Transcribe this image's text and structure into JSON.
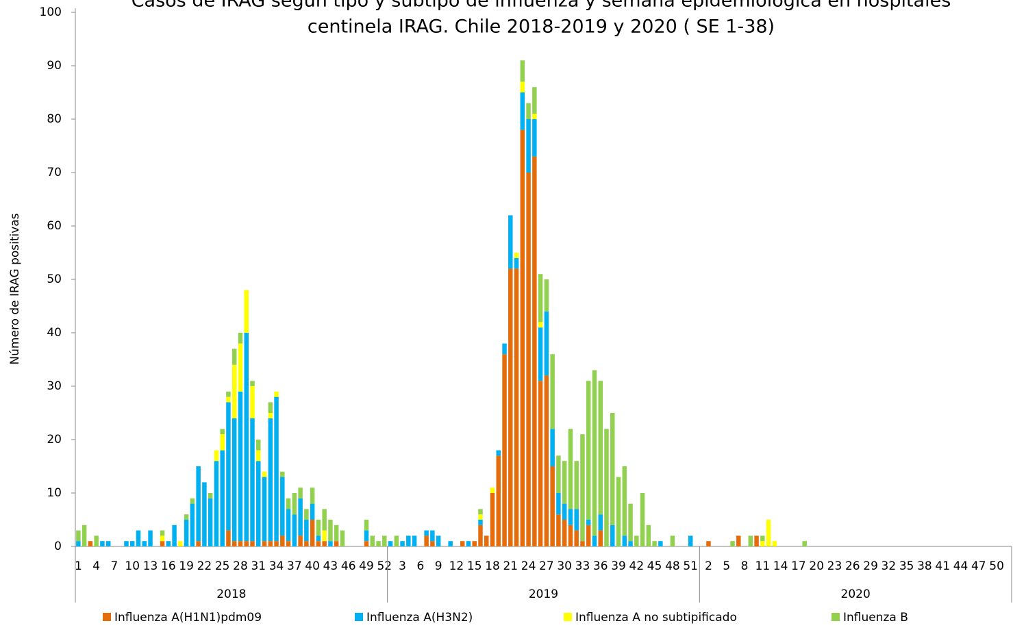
{
  "chart_data": {
    "type": "stacked_bar",
    "title": [
      "Casos de IRAG según tipo y subtipo de influenza y semana epidemiológica en hospitales",
      "centinela IRAG.  Chile 2018-2019 y 2020 ( SE 1-38)"
    ],
    "y_label": "Número de IRAG positivas",
    "groups": [
      "2018",
      "2019",
      "2020"
    ],
    "categories": [
      "1",
      null,
      null,
      "4",
      null,
      null,
      "7",
      null,
      null,
      "10",
      null,
      null,
      "13",
      null,
      null,
      "16",
      null,
      null,
      "19",
      null,
      null,
      "22",
      null,
      null,
      "25",
      null,
      null,
      "28",
      null,
      null,
      "31",
      null,
      null,
      "34",
      null,
      null,
      "37",
      null,
      null,
      "40",
      null,
      null,
      "43",
      null,
      null,
      "46",
      null,
      null,
      "49",
      null,
      null,
      "52",
      null,
      null,
      "3",
      null,
      null,
      "6",
      null,
      null,
      "9",
      null,
      null,
      "12",
      null,
      null,
      "15",
      null,
      null,
      "18",
      null,
      null,
      "21",
      null,
      null,
      "24",
      null,
      null,
      "27",
      null,
      null,
      "30",
      null,
      null,
      "33",
      null,
      null,
      "36",
      null,
      null,
      "39",
      null,
      null,
      "42",
      null,
      null,
      "45",
      null,
      null,
      "48",
      null,
      null,
      "51",
      null,
      null,
      "2",
      null,
      null,
      "5",
      null,
      null,
      "8",
      null,
      null,
      "11",
      null,
      null,
      "14",
      null,
      null,
      "17",
      null,
      null,
      "20",
      null,
      null,
      "23",
      null,
      null,
      "26",
      null,
      null,
      "29",
      null,
      null,
      "32",
      null,
      null,
      "35",
      null,
      null,
      "38",
      null,
      null,
      "41",
      null,
      null,
      "44",
      null,
      null,
      "47",
      null,
      null,
      "50",
      null,
      null
    ],
    "series": [
      {
        "name": "Influenza A(H1N1)pdm09",
        "color": "#E46C0A",
        "values": [
          0,
          0,
          1,
          0,
          0,
          0,
          0,
          0,
          0,
          0,
          0,
          0,
          0,
          0,
          1,
          0,
          0,
          0,
          0,
          0,
          1,
          0,
          0,
          0,
          0,
          3,
          1,
          1,
          1,
          1,
          0,
          1,
          1,
          1,
          2,
          1,
          0,
          2,
          1,
          5,
          1,
          1,
          0,
          1,
          0,
          0,
          0,
          0,
          1,
          0,
          0,
          0,
          0,
          0,
          0,
          0,
          0,
          0,
          2,
          1,
          0,
          0,
          0,
          0,
          1,
          0,
          1,
          4,
          2,
          10,
          17,
          36,
          52,
          52,
          78,
          70,
          73,
          31,
          32,
          15,
          6,
          5,
          4,
          3,
          1,
          4,
          0,
          3,
          0,
          0,
          0,
          0,
          0,
          0,
          0,
          0,
          0,
          0,
          0,
          0,
          0,
          0,
          0,
          0,
          0,
          1,
          0,
          0,
          0,
          0,
          2,
          0,
          0,
          2,
          0,
          0,
          0,
          0,
          0,
          0,
          0,
          0,
          0,
          0,
          0,
          0,
          0,
          0,
          0,
          0,
          0,
          0,
          0,
          0,
          0,
          0,
          0,
          0,
          0,
          0,
          0,
          0,
          0,
          0,
          0,
          0,
          0,
          0,
          0,
          0,
          0,
          0,
          0,
          0,
          0,
          0
        ]
      },
      {
        "name": "Influenza A(H3N2)",
        "color": "#00B0F0",
        "values": [
          1,
          0,
          0,
          0,
          1,
          1,
          0,
          0,
          1,
          1,
          3,
          1,
          3,
          0,
          0,
          1,
          4,
          0,
          5,
          8,
          14,
          12,
          9,
          16,
          18,
          24,
          23,
          28,
          39,
          23,
          16,
          12,
          23,
          27,
          11,
          6,
          6,
          7,
          4,
          3,
          1,
          0,
          1,
          0,
          0,
          0,
          0,
          0,
          2,
          0,
          0,
          0,
          1,
          0,
          1,
          2,
          2,
          0,
          1,
          2,
          2,
          0,
          1,
          0,
          0,
          1,
          0,
          1,
          0,
          0,
          1,
          2,
          10,
          2,
          7,
          10,
          7,
          10,
          12,
          7,
          4,
          3,
          3,
          4,
          0,
          1,
          2,
          3,
          0,
          4,
          0,
          2,
          1,
          0,
          0,
          0,
          0,
          1,
          0,
          0,
          0,
          0,
          2,
          0,
          0,
          0,
          0,
          0,
          0,
          0,
          0,
          0,
          0,
          0,
          0,
          0,
          0,
          0,
          0,
          0,
          0,
          0,
          0,
          0,
          0,
          0,
          0,
          0,
          0,
          0,
          0,
          0,
          0,
          0,
          0,
          0,
          0,
          0,
          0,
          0,
          0,
          0,
          0,
          0,
          0,
          0,
          0,
          0,
          0,
          0,
          0,
          0,
          0,
          0,
          0,
          0
        ]
      },
      {
        "name": "Influenza A no subtipificado",
        "color": "#FFFF00",
        "values": [
          0,
          0,
          0,
          0,
          0,
          0,
          0,
          0,
          0,
          0,
          0,
          0,
          0,
          0,
          1,
          0,
          0,
          1,
          0,
          0,
          0,
          0,
          0,
          2,
          3,
          1,
          10,
          9,
          8,
          6,
          2,
          1,
          1,
          1,
          0,
          0,
          0,
          0,
          0,
          0,
          0,
          2,
          0,
          0,
          0,
          0,
          0,
          0,
          0,
          0,
          0,
          0,
          0,
          0,
          0,
          0,
          0,
          0,
          0,
          0,
          0,
          0,
          0,
          0,
          0,
          0,
          0,
          1,
          0,
          1,
          0,
          0,
          0,
          1,
          2,
          0,
          1,
          1,
          0,
          0,
          0,
          0,
          0,
          0,
          0,
          0,
          0,
          0,
          0,
          0,
          0,
          0,
          0,
          0,
          0,
          0,
          0,
          0,
          0,
          0,
          0,
          0,
          0,
          0,
          0,
          0,
          0,
          0,
          0,
          0,
          0,
          0,
          0,
          0,
          1,
          5,
          1,
          0,
          0,
          0,
          0,
          0,
          0,
          0,
          0,
          0,
          0,
          0,
          0,
          0,
          0,
          0,
          0,
          0,
          0,
          0,
          0,
          0,
          0,
          0,
          0,
          0,
          0,
          0,
          0,
          0,
          0,
          0,
          0,
          0,
          0,
          0,
          0,
          0,
          0,
          0
        ]
      },
      {
        "name": "Influenza  B",
        "color": "#92D050",
        "values": [
          2,
          4,
          0,
          2,
          0,
          0,
          0,
          0,
          0,
          0,
          0,
          0,
          0,
          0,
          1,
          0,
          0,
          0,
          1,
          1,
          0,
          0,
          1,
          0,
          1,
          1,
          3,
          2,
          0,
          1,
          2,
          0,
          2,
          0,
          1,
          2,
          4,
          2,
          2,
          3,
          3,
          4,
          4,
          3,
          3,
          0,
          0,
          0,
          2,
          2,
          1,
          2,
          0,
          2,
          0,
          0,
          0,
          0,
          0,
          0,
          0,
          0,
          0,
          0,
          0,
          0,
          0,
          1,
          0,
          0,
          0,
          0,
          0,
          0,
          4,
          3,
          5,
          9,
          6,
          14,
          7,
          8,
          15,
          9,
          20,
          26,
          31,
          25,
          22,
          21,
          13,
          13,
          7,
          2,
          10,
          4,
          1,
          0,
          0,
          2,
          0,
          0,
          0,
          0,
          0,
          0,
          0,
          0,
          0,
          1,
          0,
          0,
          2,
          0,
          1,
          0,
          0,
          0,
          0,
          0,
          0,
          1,
          0,
          0,
          0,
          0,
          0,
          0,
          0,
          0,
          0,
          0,
          0,
          0,
          0,
          0,
          0,
          0,
          0,
          0,
          0,
          0,
          0,
          0,
          0,
          0,
          0,
          0,
          0,
          0,
          0,
          0,
          0,
          0,
          0,
          0
        ]
      }
    ],
    "ylim": [
      0,
      100
    ],
    "yticks": [
      0,
      10,
      20,
      30,
      40,
      50,
      60,
      70,
      80,
      90,
      100
    ],
    "grid": false,
    "legend": "bottom"
  }
}
